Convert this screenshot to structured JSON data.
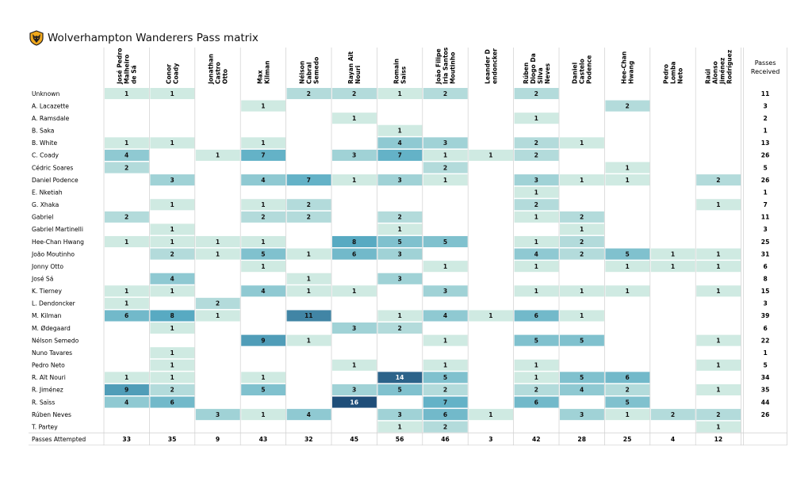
{
  "title": "Wolverhampton Wanderers Pass matrix",
  "crest_icon": "wolf-head-crest-icon",
  "colors": {
    "low": "#cfeae2",
    "high": "#1f4e79",
    "grid": "#cfcfcf",
    "background": "#ffffff"
  },
  "chart_data": {
    "type": "heatmap",
    "title": "Wolverhampton Wanderers Pass matrix",
    "columns": [
      [
        "José Pedro",
        "Malheiro",
        "de Sá"
      ],
      [
        "Conor",
        "Coady"
      ],
      [
        "Jonathan",
        "Castro",
        "Otto"
      ],
      [
        "Max",
        "Kilman"
      ],
      [
        "Nélson",
        "Cabral",
        "Semedo"
      ],
      [
        "Rayan Aït",
        "Nouri"
      ],
      [
        "Romain",
        "Saïss"
      ],
      [
        "João Filipe",
        "Iria Santos",
        "Moutinho"
      ],
      [
        "Leander D",
        "endoncker"
      ],
      [
        "Rúben",
        "Diogo Da",
        "Silva",
        "Neves"
      ],
      [
        "Daniel",
        "Castelo",
        "Podence"
      ],
      [
        "Hee-Chan",
        "Hwang"
      ],
      [
        "Pedro",
        "Lomba",
        "Neto"
      ],
      [
        "Raúl",
        "Alonso",
        "Jiménez",
        "Rodríguez"
      ]
    ],
    "received_header": [
      "Passes",
      "Received"
    ],
    "rows": [
      "Unknown",
      "A. Lacazette",
      "A. Ramsdale",
      "B. Saka",
      "B. White",
      "C. Coady",
      "Cédric Soares",
      "Daniel Podence",
      "E. Nketiah",
      "G. Xhaka",
      "Gabriel",
      "Gabriel Martinelli",
      "Hee-Chan Hwang",
      "João Moutinho",
      "Jonny Otto",
      "José Sá",
      "K. Tierney",
      "L. Dendoncker",
      "M. Kilman",
      "M. Ødegaard",
      "Nélson Semedo",
      "Nuno Tavares",
      "Pedro Neto",
      "R. Aït Nouri",
      "R. Jiménez",
      "R. Saïss",
      "Rúben Neves",
      "T. Partey"
    ],
    "values": [
      [
        1,
        1,
        0,
        0,
        2,
        2,
        1,
        2,
        0,
        2,
        0,
        0,
        0,
        0
      ],
      [
        0,
        0,
        0,
        1,
        0,
        0,
        0,
        0,
        0,
        0,
        0,
        2,
        0,
        0
      ],
      [
        0,
        0,
        0,
        0,
        0,
        1,
        0,
        0,
        0,
        1,
        0,
        0,
        0,
        0
      ],
      [
        0,
        0,
        0,
        0,
        0,
        0,
        1,
        0,
        0,
        0,
        0,
        0,
        0,
        0
      ],
      [
        1,
        1,
        0,
        1,
        0,
        0,
        4,
        3,
        0,
        2,
        1,
        0,
        0,
        0
      ],
      [
        4,
        0,
        1,
        7,
        0,
        3,
        7,
        1,
        1,
        2,
        0,
        0,
        0,
        0
      ],
      [
        2,
        0,
        0,
        0,
        0,
        0,
        0,
        2,
        0,
        0,
        0,
        1,
        0,
        0
      ],
      [
        0,
        3,
        0,
        4,
        7,
        1,
        3,
        1,
        0,
        3,
        1,
        1,
        0,
        2
      ],
      [
        0,
        0,
        0,
        0,
        0,
        0,
        0,
        0,
        0,
        1,
        0,
        0,
        0,
        0
      ],
      [
        0,
        1,
        0,
        1,
        2,
        0,
        0,
        0,
        0,
        2,
        0,
        0,
        0,
        1
      ],
      [
        2,
        0,
        0,
        2,
        2,
        0,
        2,
        0,
        0,
        1,
        2,
        0,
        0,
        0
      ],
      [
        0,
        1,
        0,
        0,
        0,
        0,
        1,
        0,
        0,
        0,
        1,
        0,
        0,
        0
      ],
      [
        1,
        1,
        1,
        1,
        0,
        8,
        5,
        5,
        0,
        1,
        2,
        0,
        0,
        0
      ],
      [
        0,
        2,
        1,
        5,
        1,
        6,
        3,
        0,
        0,
        4,
        2,
        5,
        1,
        1
      ],
      [
        0,
        0,
        0,
        1,
        0,
        0,
        0,
        1,
        0,
        1,
        0,
        1,
        1,
        1
      ],
      [
        0,
        4,
        0,
        0,
        1,
        0,
        3,
        0,
        0,
        0,
        0,
        0,
        0,
        0
      ],
      [
        1,
        1,
        0,
        4,
        1,
        1,
        0,
        3,
        0,
        1,
        1,
        1,
        0,
        1
      ],
      [
        1,
        0,
        2,
        0,
        0,
        0,
        0,
        0,
        0,
        0,
        0,
        0,
        0,
        0
      ],
      [
        6,
        8,
        1,
        0,
        11,
        0,
        1,
        4,
        1,
        6,
        1,
        0,
        0,
        0
      ],
      [
        0,
        1,
        0,
        0,
        0,
        3,
        2,
        0,
        0,
        0,
        0,
        0,
        0,
        0
      ],
      [
        0,
        0,
        0,
        9,
        1,
        0,
        0,
        1,
        0,
        5,
        5,
        0,
        0,
        1
      ],
      [
        0,
        1,
        0,
        0,
        0,
        0,
        0,
        0,
        0,
        0,
        0,
        0,
        0,
        0
      ],
      [
        0,
        1,
        0,
        0,
        0,
        1,
        0,
        1,
        0,
        1,
        0,
        0,
        0,
        1
      ],
      [
        1,
        1,
        0,
        1,
        0,
        0,
        14,
        5,
        0,
        1,
        5,
        6,
        0,
        0
      ],
      [
        9,
        2,
        0,
        5,
        0,
        3,
        5,
        2,
        0,
        2,
        4,
        2,
        0,
        1
      ],
      [
        4,
        6,
        0,
        0,
        0,
        16,
        0,
        7,
        0,
        6,
        0,
        5,
        0,
        0
      ],
      [
        0,
        0,
        3,
        1,
        4,
        0,
        3,
        6,
        1,
        0,
        3,
        1,
        2,
        2
      ],
      [
        0,
        0,
        0,
        0,
        0,
        0,
        1,
        2,
        0,
        0,
        0,
        0,
        0,
        1
      ]
    ],
    "passes_received": [
      11,
      3,
      2,
      1,
      13,
      26,
      5,
      26,
      1,
      7,
      11,
      3,
      25,
      31,
      6,
      8,
      15,
      3,
      39,
      6,
      22,
      1,
      5,
      34,
      35,
      44,
      26,
      ""
    ],
    "attempted_label": "Passes Attempted",
    "passes_attempted": [
      33,
      35,
      9,
      43,
      32,
      45,
      56,
      46,
      3,
      42,
      28,
      25,
      4,
      12
    ],
    "value_range": [
      0,
      16
    ],
    "xlabel": "",
    "ylabel": ""
  }
}
